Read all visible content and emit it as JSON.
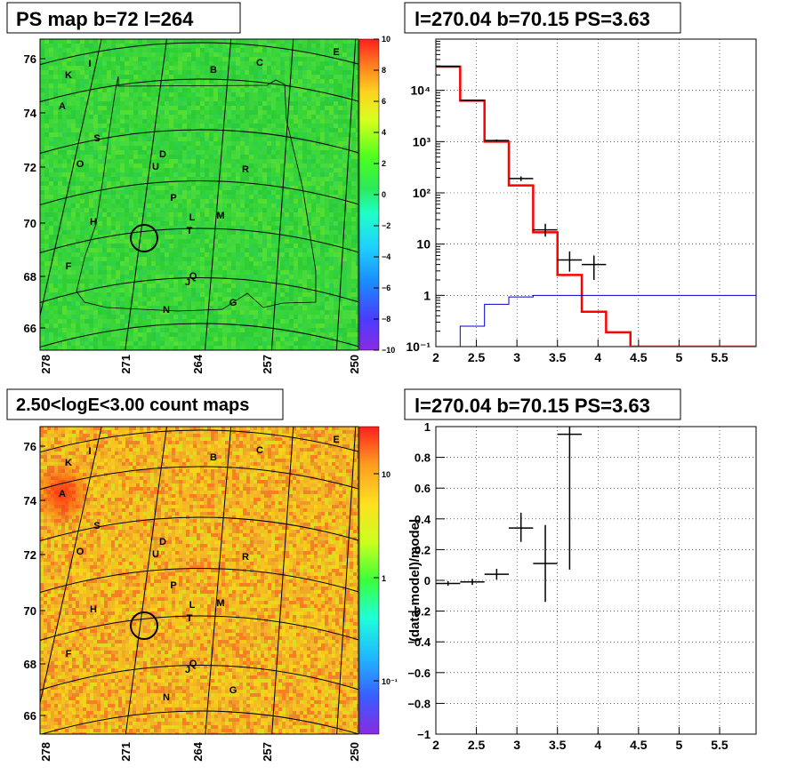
{
  "panels": {
    "top_left": {
      "title": "PS map b=72 l=264",
      "y_ticks": [
        "76",
        "74",
        "72",
        "70",
        "68",
        "66"
      ],
      "x_ticks": [
        "278",
        "271",
        "264",
        "257",
        "250"
      ],
      "color_scale_ticks": [
        "10",
        "8",
        "6",
        "4",
        "2",
        "0",
        "−2",
        "−4",
        "−6",
        "−8",
        "−10"
      ],
      "source_labels": [
        "I",
        "B",
        "C",
        "E",
        "K",
        "A",
        "S",
        "D",
        "O",
        "U",
        "R",
        "P",
        "L",
        "M",
        "H",
        "T",
        "F",
        "Q",
        "J",
        "G",
        "N"
      ]
    },
    "top_right": {
      "title": "l=270.04 b=70.15 PS=3.63"
    },
    "bottom_left": {
      "title": "2.50<logE<3.00 count maps",
      "y_ticks": [
        "76",
        "74",
        "72",
        "70",
        "68",
        "66"
      ],
      "x_ticks": [
        "278",
        "271",
        "264",
        "257",
        "250"
      ],
      "color_scale_ticks": [
        "10",
        "1",
        "10⁻¹"
      ],
      "source_labels": [
        "I",
        "B",
        "C",
        "E",
        "K",
        "A",
        "S",
        "D",
        "O",
        "U",
        "R",
        "P",
        "L",
        "M",
        "H",
        "T",
        "F",
        "Q",
        "J",
        "G",
        "N"
      ]
    },
    "bottom_right": {
      "title": "l=270.04 b=70.15 PS=3.63",
      "ylabel": "(data-model)/model"
    }
  },
  "chart_data": [
    {
      "type": "heatmap",
      "panel": "top_left",
      "title": "PS map b=72 l=264",
      "xlim": [
        278,
        250
      ],
      "ylim": [
        65.5,
        76.5
      ],
      "zlim": [
        -10,
        10
      ],
      "colors": {
        "background": "#35d535",
        "circle": "#000000",
        "grid": "#000000"
      }
    },
    {
      "type": "line",
      "panel": "top_right",
      "title": "l=270.04 b=70.15 PS=3.63",
      "yscale": "log",
      "xlim": [
        2.0,
        5.95
      ],
      "ylim": [
        0.1,
        100000
      ],
      "x_ticks": [
        2,
        2.5,
        3,
        3.5,
        4,
        4.5,
        5,
        5.5
      ],
      "x_tick_labels": [
        "2",
        "2.5",
        "3",
        "3.5",
        "4",
        "4.5",
        "5",
        "5.5"
      ],
      "y_ticks": [
        0.1,
        1,
        10,
        100,
        1000,
        10000
      ],
      "y_tick_labels": [
        "10⁻¹",
        "1",
        "10",
        "10²",
        "10³",
        "10⁴"
      ],
      "grid": true,
      "series": [
        {
          "style": "step",
          "color": "#ff0000",
          "edges": [
            2.0,
            2.3,
            2.6,
            2.9,
            3.2,
            3.5,
            3.8,
            4.1,
            4.4,
            4.7,
            5.0,
            5.3,
            5.6,
            5.95
          ],
          "values": [
            29000,
            6300,
            1000,
            140,
            17,
            2.5,
            0.48,
            0.19,
            0.1,
            0.1,
            0.1,
            0.1,
            0.1
          ]
        },
        {
          "style": "step",
          "color": "#0000cc",
          "edges": [
            2.0,
            2.3,
            2.6,
            2.9,
            3.2,
            3.5,
            3.8,
            4.1,
            4.4,
            4.7,
            5.0,
            5.3,
            5.6,
            5.95
          ],
          "values": [
            0.05,
            0.25,
            0.67,
            0.93,
            1.0,
            1.0,
            1.0,
            1.0,
            1.0,
            1.0,
            1.0,
            1.0,
            1.0
          ]
        },
        {
          "style": "errorbar",
          "color": "#000000",
          "points": [
            {
              "x": 2.15,
              "xerr": 0.15,
              "y": 29500,
              "ylo": 29000,
              "yhi": 30000
            },
            {
              "x": 2.45,
              "xerr": 0.15,
              "y": 6400,
              "ylo": 6300,
              "yhi": 6500
            },
            {
              "x": 2.75,
              "xerr": 0.15,
              "y": 1050,
              "ylo": 1000,
              "yhi": 1100
            },
            {
              "x": 3.05,
              "xerr": 0.15,
              "y": 190,
              "ylo": 170,
              "yhi": 210
            },
            {
              "x": 3.35,
              "xerr": 0.15,
              "y": 19,
              "ylo": 14,
              "yhi": 25
            },
            {
              "x": 3.65,
              "xerr": 0.15,
              "y": 4.9,
              "ylo": 2.9,
              "yhi": 7.2
            },
            {
              "x": 3.95,
              "xerr": 0.15,
              "y": 4.0,
              "ylo": 2.0,
              "yhi": 6.0
            }
          ]
        }
      ]
    },
    {
      "type": "heatmap",
      "panel": "bottom_left",
      "title": "2.50<logE<3.00 count maps",
      "xlim": [
        278,
        250
      ],
      "ylim": [
        65.5,
        76.5
      ],
      "zscale": "log",
      "colors": {
        "background": "#f2b52a",
        "hotspot": "#ff3a12",
        "circle": "#000000"
      }
    },
    {
      "type": "scatter",
      "panel": "bottom_right",
      "title": "l=270.04 b=70.15 PS=3.63",
      "ylabel": "(data-model)/model",
      "xlim": [
        2.0,
        5.95
      ],
      "ylim": [
        -1,
        1
      ],
      "x_ticks": [
        2,
        2.5,
        3,
        3.5,
        4,
        4.5,
        5,
        5.5
      ],
      "x_tick_labels": [
        "2",
        "2.5",
        "3",
        "3.5",
        "4",
        "4.5",
        "5",
        "5.5"
      ],
      "y_ticks": [
        -1,
        -0.8,
        -0.6,
        -0.4,
        -0.2,
        0,
        0.2,
        0.4,
        0.6,
        0.8,
        1
      ],
      "y_tick_labels": [
        "−1",
        "−0.8",
        "−0.6",
        "−0.4",
        "−0.2",
        "0",
        "0.2",
        "0.4",
        "0.6",
        "0.8",
        "1"
      ],
      "grid": true,
      "points": [
        {
          "x": 2.15,
          "xerr": 0.15,
          "y": -0.02,
          "ylo": -0.035,
          "yhi": -0.005
        },
        {
          "x": 2.45,
          "xerr": 0.15,
          "y": -0.01,
          "ylo": -0.03,
          "yhi": 0.01
        },
        {
          "x": 2.75,
          "xerr": 0.15,
          "y": 0.04,
          "ylo": 0.005,
          "yhi": 0.075
        },
        {
          "x": 3.05,
          "xerr": 0.15,
          "y": 0.34,
          "ylo": 0.25,
          "yhi": 0.44
        },
        {
          "x": 3.35,
          "xerr": 0.15,
          "y": 0.11,
          "ylo": -0.14,
          "yhi": 0.36
        },
        {
          "x": 3.65,
          "xerr": 0.15,
          "y": 0.95,
          "ylo": 0.07,
          "yhi": 1.0
        }
      ]
    }
  ]
}
